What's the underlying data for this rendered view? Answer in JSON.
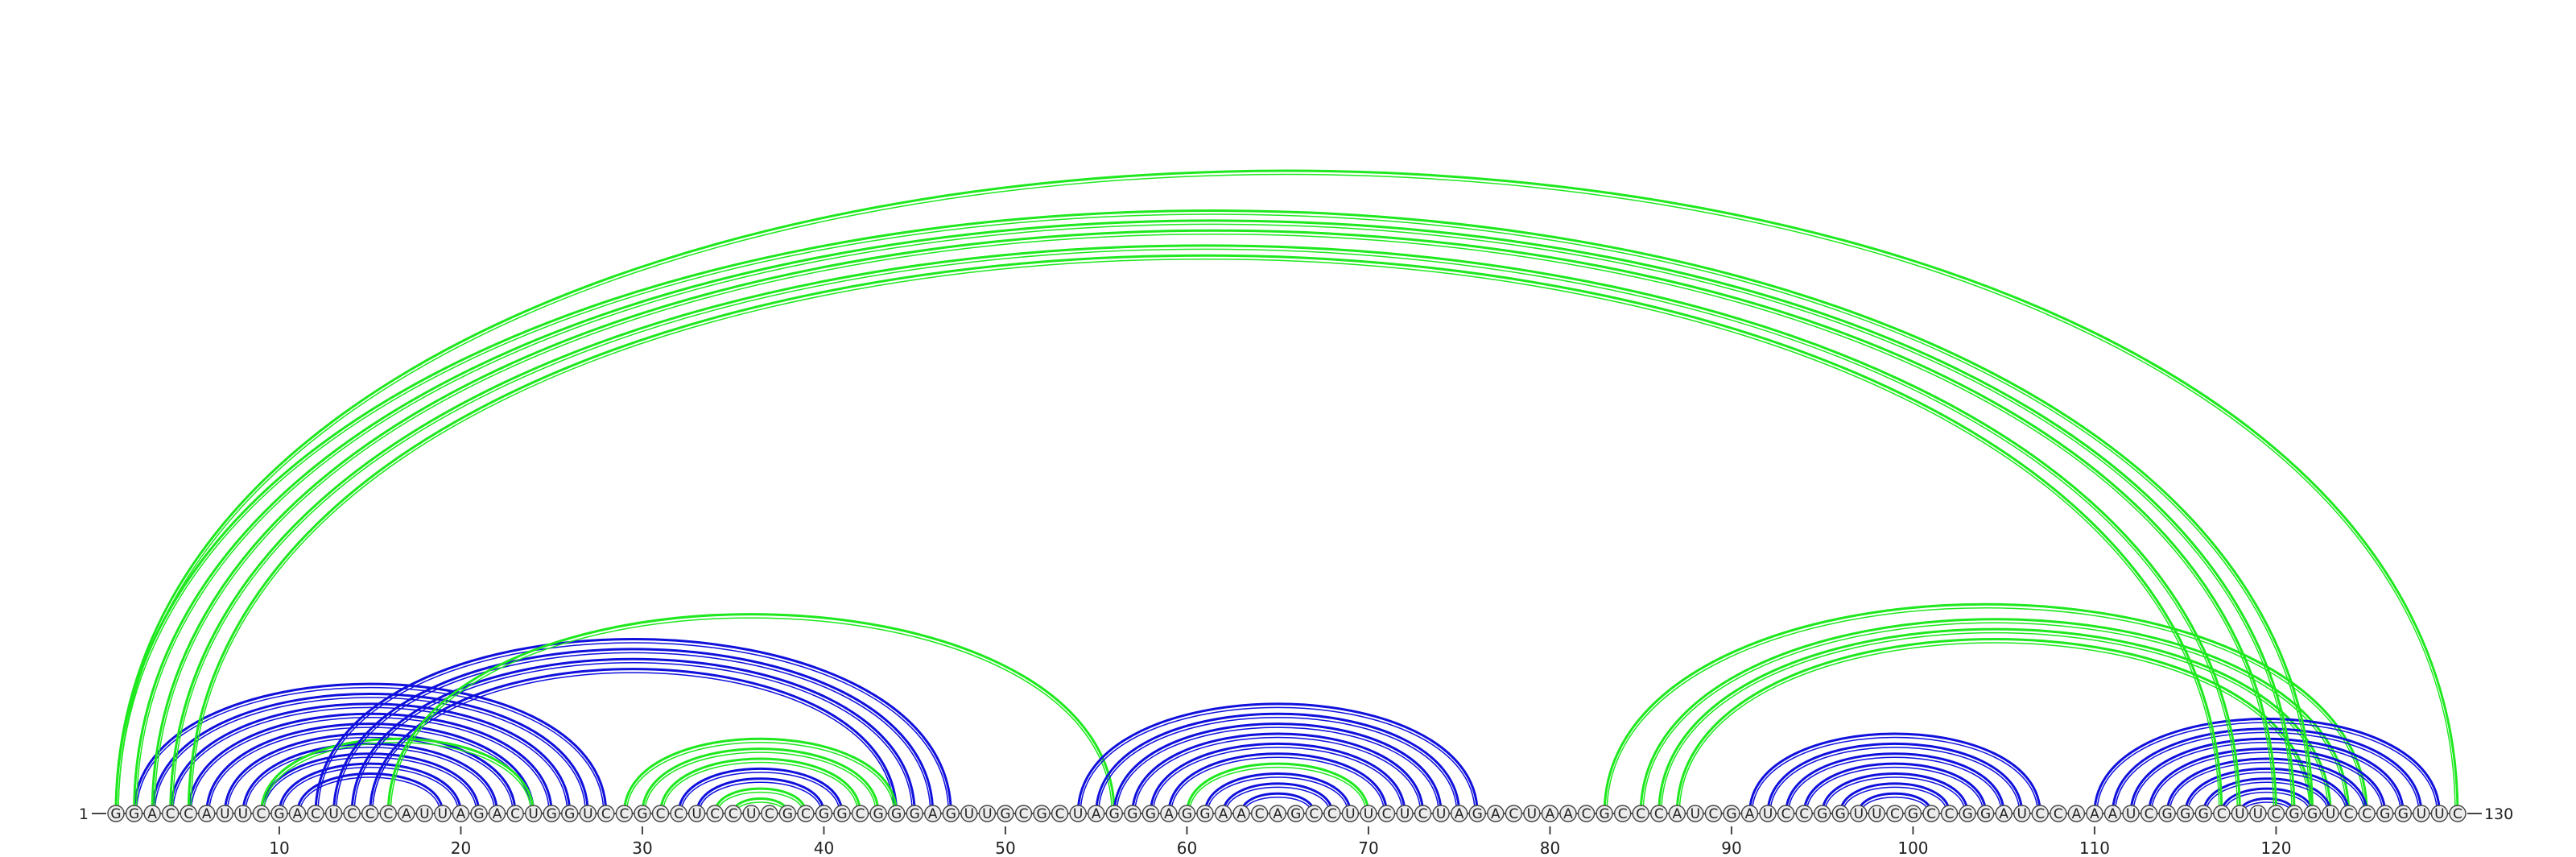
{
  "diagram": {
    "type": "rna-arc-diagram",
    "sequence": "GGACCAUUCGACUCCCAUUAGACUGGUCCGCCUCCUCGCGGCGGGAGUUGCGCUAGGGAGGAACAGCCUUCUCUAGACUAACGCCCAUCGAUCCGGUUCGCCGGAUCCAAAUCGGGCUUCGGUCCGGUUC",
    "length": 130,
    "start_label": "1",
    "end_label": "130",
    "tick_labels": [
      "10",
      "20",
      "30",
      "40",
      "50",
      "60",
      "70",
      "80",
      "90",
      "100",
      "110",
      "120"
    ],
    "colors": {
      "blue": "#1010dd",
      "green": "#1ee81e",
      "nucleotide_fill": "#ececec",
      "nucleotide_stroke": "#444444",
      "text": "#222222"
    },
    "arcs": [
      {
        "i": 2,
        "j": 28,
        "color": "blue"
      },
      {
        "i": 3,
        "j": 27,
        "color": "blue"
      },
      {
        "i": 4,
        "j": 26,
        "color": "blue"
      },
      {
        "i": 5,
        "j": 25,
        "color": "blue"
      },
      {
        "i": 6,
        "j": 24,
        "color": "blue"
      },
      {
        "i": 7,
        "j": 23,
        "color": "blue"
      },
      {
        "i": 8,
        "j": 22,
        "color": "blue"
      },
      {
        "i": 9,
        "j": 21,
        "color": "blue"
      },
      {
        "i": 10,
        "j": 20,
        "color": "blue"
      },
      {
        "i": 11,
        "j": 19,
        "color": "blue"
      },
      {
        "i": 9,
        "j": 24,
        "color": "green"
      },
      {
        "i": 12,
        "j": 47,
        "color": "blue"
      },
      {
        "i": 13,
        "j": 46,
        "color": "blue"
      },
      {
        "i": 14,
        "j": 45,
        "color": "blue"
      },
      {
        "i": 15,
        "j": 44,
        "color": "blue"
      },
      {
        "i": 16,
        "j": 56,
        "color": "green"
      },
      {
        "i": 29,
        "j": 44,
        "color": "green"
      },
      {
        "i": 30,
        "j": 43,
        "color": "green"
      },
      {
        "i": 31,
        "j": 42,
        "color": "green"
      },
      {
        "i": 32,
        "j": 41,
        "color": "blue"
      },
      {
        "i": 33,
        "j": 40,
        "color": "blue"
      },
      {
        "i": 34,
        "j": 39,
        "color": "green"
      },
      {
        "i": 35,
        "j": 38,
        "color": "green"
      },
      {
        "i": 54,
        "j": 76,
        "color": "blue"
      },
      {
        "i": 55,
        "j": 75,
        "color": "blue"
      },
      {
        "i": 56,
        "j": 74,
        "color": "blue"
      },
      {
        "i": 57,
        "j": 73,
        "color": "blue"
      },
      {
        "i": 58,
        "j": 72,
        "color": "blue"
      },
      {
        "i": 59,
        "j": 71,
        "color": "blue"
      },
      {
        "i": 60,
        "j": 70,
        "color": "green"
      },
      {
        "i": 61,
        "j": 69,
        "color": "blue"
      },
      {
        "i": 62,
        "j": 68,
        "color": "blue"
      },
      {
        "i": 63,
        "j": 67,
        "color": "blue"
      },
      {
        "i": 83,
        "j": 125,
        "color": "green"
      },
      {
        "i": 85,
        "j": 124,
        "color": "green"
      },
      {
        "i": 86,
        "j": 123,
        "color": "green"
      },
      {
        "i": 87,
        "j": 122,
        "color": "green"
      },
      {
        "i": 91,
        "j": 107,
        "color": "blue"
      },
      {
        "i": 92,
        "j": 106,
        "color": "blue"
      },
      {
        "i": 93,
        "j": 105,
        "color": "blue"
      },
      {
        "i": 94,
        "j": 104,
        "color": "blue"
      },
      {
        "i": 95,
        "j": 103,
        "color": "blue"
      },
      {
        "i": 96,
        "j": 102,
        "color": "blue"
      },
      {
        "i": 97,
        "j": 101,
        "color": "blue"
      },
      {
        "i": 110,
        "j": 129,
        "color": "blue"
      },
      {
        "i": 111,
        "j": 128,
        "color": "blue"
      },
      {
        "i": 112,
        "j": 127,
        "color": "blue"
      },
      {
        "i": 113,
        "j": 126,
        "color": "blue"
      },
      {
        "i": 114,
        "j": 125,
        "color": "blue"
      },
      {
        "i": 115,
        "j": 124,
        "color": "blue"
      },
      {
        "i": 116,
        "j": 123,
        "color": "blue"
      },
      {
        "i": 117,
        "j": 122,
        "color": "blue"
      },
      {
        "i": 118,
        "j": 121,
        "color": "blue"
      },
      {
        "i": 1,
        "j": 122,
        "color": "green"
      },
      {
        "i": 2,
        "j": 121,
        "color": "green"
      },
      {
        "i": 3,
        "j": 120,
        "color": "green"
      },
      {
        "i": 4,
        "j": 118,
        "color": "green"
      },
      {
        "i": 5,
        "j": 117,
        "color": "green"
      },
      {
        "i": 1,
        "j": 130,
        "color": "green"
      }
    ]
  }
}
